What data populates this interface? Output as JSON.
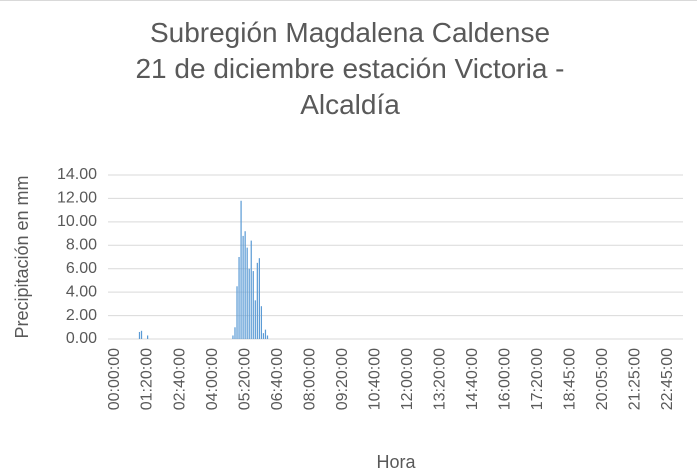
{
  "chart_data": {
    "type": "bar",
    "title": [
      "Subregión Magdalena Caldense",
      "21 de diciembre estación Victoria -",
      "Alcaldía"
    ],
    "xlabel": "Hora",
    "ylabel": "Precipitación en mm",
    "color": "#5b9bd5",
    "grid": true,
    "ylim": [
      0,
      14
    ],
    "yticks": [
      {
        "value": 0,
        "label": "0.00"
      },
      {
        "value": 2,
        "label": "2.00"
      },
      {
        "value": 4,
        "label": "4.00"
      },
      {
        "value": 6,
        "label": "6.00"
      },
      {
        "value": 8,
        "label": "8.00"
      },
      {
        "value": 10,
        "label": "10.00"
      },
      {
        "value": 12,
        "label": "12.00"
      },
      {
        "value": 14,
        "label": "14.00"
      }
    ],
    "categories": [
      "00:00:00",
      null,
      null,
      null,
      null,
      null,
      null,
      null,
      null,
      null,
      null,
      null,
      null,
      null,
      null,
      null,
      "01:20:00",
      null,
      null,
      null,
      null,
      null,
      null,
      null,
      null,
      null,
      null,
      null,
      null,
      null,
      null,
      null,
      "02:40:00",
      null,
      null,
      null,
      null,
      null,
      null,
      null,
      null,
      null,
      null,
      null,
      null,
      null,
      null,
      null,
      "04:00:00",
      null,
      null,
      null,
      null,
      null,
      null,
      null,
      null,
      null,
      null,
      null,
      null,
      null,
      null,
      null,
      "05:20:00",
      null,
      null,
      null,
      null,
      null,
      null,
      null,
      null,
      null,
      null,
      null,
      null,
      null,
      null,
      null,
      "06:40:00",
      null,
      null,
      null,
      null,
      null,
      null,
      null,
      null,
      null,
      null,
      null,
      null,
      null,
      null,
      null,
      "08:00:00",
      null,
      null,
      null,
      null,
      null,
      null,
      null,
      null,
      null,
      null,
      null,
      null,
      null,
      null,
      null,
      "09:20:00",
      null,
      null,
      null,
      null,
      null,
      null,
      null,
      null,
      null,
      null,
      null,
      null,
      null,
      null,
      null,
      "10:40:00",
      null,
      null,
      null,
      null,
      null,
      null,
      null,
      null,
      null,
      null,
      null,
      null,
      null,
      null,
      null,
      "12:00:00",
      null,
      null,
      null,
      null,
      null,
      null,
      null,
      null,
      null,
      null,
      null,
      null,
      null,
      null,
      null,
      "13:20:00",
      null,
      null,
      null,
      null,
      null,
      null,
      null,
      null,
      null,
      null,
      null,
      null,
      null,
      null,
      null,
      "14:40:00",
      null,
      null,
      null,
      null,
      null,
      null,
      null,
      null,
      null,
      null,
      null,
      null,
      null,
      null,
      null,
      "16:00:00",
      null,
      null,
      null,
      null,
      null,
      null,
      null,
      null,
      null,
      null,
      null,
      null,
      null,
      null,
      null,
      "17:20:00",
      null,
      null,
      null,
      null,
      null,
      null,
      null,
      null,
      null,
      null,
      null,
      null,
      null,
      null,
      null,
      "18:45:00",
      null,
      null,
      null,
      null,
      null,
      null,
      null,
      null,
      null,
      null,
      null,
      null,
      null,
      null,
      null,
      "20:05:00",
      null,
      null,
      null,
      null,
      null,
      null,
      null,
      null,
      null,
      null,
      null,
      null,
      null,
      null,
      null,
      "21:25:00",
      null,
      null,
      null,
      null,
      null,
      null,
      null,
      null,
      null,
      null,
      null,
      null,
      null,
      null,
      null,
      "22:45:00",
      null,
      null,
      null,
      null,
      null,
      null,
      null,
      null,
      null,
      null
    ],
    "values": [
      0,
      0,
      0,
      0,
      0,
      0,
      0,
      0,
      0,
      0,
      0,
      0,
      0,
      0,
      0,
      0.6,
      0.7,
      0,
      0,
      0.3,
      0,
      0,
      0,
      0,
      0,
      0,
      0,
      0,
      0,
      0,
      0,
      0,
      0,
      0,
      0,
      0,
      0,
      0,
      0,
      0,
      0,
      0,
      0,
      0,
      0,
      0,
      0,
      0,
      0,
      0,
      0,
      0,
      0,
      0,
      0,
      0,
      0,
      0,
      0,
      0,
      0,
      0.3,
      1,
      4.5,
      7,
      11.8,
      8.8,
      9.2,
      7.8,
      6,
      8.4,
      5.8,
      3.3,
      6.5,
      6.9,
      2.8,
      0.5,
      0.8,
      0.3,
      0,
      0,
      0,
      0,
      0,
      0,
      0,
      0,
      0,
      0,
      0,
      0,
      0,
      0,
      0,
      0,
      0,
      0,
      0,
      0,
      0,
      0,
      0,
      0,
      0,
      0,
      0,
      0,
      0,
      0,
      0,
      0,
      0,
      0,
      0,
      0,
      0,
      0,
      0,
      0,
      0,
      0,
      0,
      0,
      0,
      0,
      0,
      0,
      0,
      0,
      0,
      0,
      0,
      0,
      0,
      0,
      0,
      0,
      0,
      0,
      0,
      0,
      0,
      0,
      0,
      0,
      0,
      0,
      0,
      0,
      0,
      0,
      0,
      0,
      0,
      0,
      0,
      0,
      0,
      0,
      0,
      0,
      0,
      0,
      0,
      0,
      0,
      0,
      0,
      0,
      0,
      0,
      0,
      0,
      0,
      0,
      0,
      0,
      0,
      0,
      0,
      0,
      0,
      0,
      0,
      0,
      0,
      0,
      0,
      0,
      0,
      0,
      0,
      0,
      0,
      0,
      0,
      0,
      0,
      0,
      0,
      0,
      0,
      0,
      0,
      0,
      0,
      0,
      0,
      0,
      0,
      0,
      0,
      0,
      0,
      0,
      0,
      0,
      0,
      0,
      0,
      0,
      0,
      0,
      0,
      0,
      0,
      0,
      0,
      0,
      0,
      0,
      0,
      0,
      0,
      0,
      0,
      0,
      0,
      0,
      0,
      0,
      0,
      0,
      0,
      0,
      0,
      0,
      0,
      0,
      0,
      0,
      0,
      0,
      0,
      0,
      0,
      0,
      0,
      0,
      0,
      0,
      0,
      0,
      0,
      0,
      0,
      0,
      0,
      0,
      0,
      0,
      0,
      0,
      0,
      0,
      0,
      0,
      0,
      0,
      0,
      0,
      0,
      0
    ]
  }
}
